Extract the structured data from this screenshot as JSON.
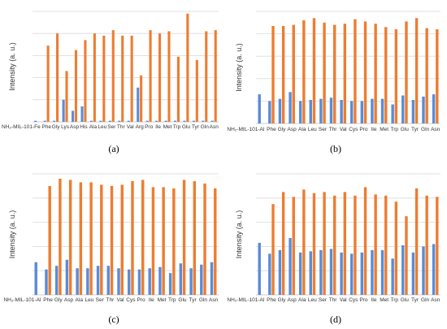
{
  "colors": {
    "series_a": "#5B8BD6",
    "series_b": "#ED7D31",
    "gridline": "#D9D9D9"
  },
  "chart_data": [
    {
      "type": "bar",
      "panel_label": "(a)",
      "ylabel": "Intensity (a. u.)",
      "grid": true,
      "categories": [
        "NH₂-MIL-101-Fe",
        "Phe",
        "Gly",
        "Lys",
        "Asp",
        "His",
        "Ala",
        "Leu",
        "Ser",
        "Thr",
        "Val",
        "Arg",
        "Pro",
        "Ile",
        "Met",
        "Trp",
        "Glu",
        "Tyr",
        "Gln",
        "Asn"
      ],
      "ylim": [
        0,
        100
      ],
      "series": [
        {
          "values": [
            1,
            1,
            1,
            20,
            10,
            14,
            1,
            1,
            1,
            1,
            1,
            31,
            1,
            1,
            1,
            1,
            1,
            1,
            1,
            1
          ]
        },
        {
          "values": [
            0,
            69,
            80,
            46,
            65,
            74,
            80,
            78,
            83,
            78,
            78,
            42,
            83,
            80,
            82,
            59,
            98,
            56,
            82,
            83
          ]
        }
      ]
    },
    {
      "type": "bar",
      "panel_label": "(b)",
      "ylabel": "Intensity (a. u.)",
      "grid": true,
      "categories": [
        "NH₂-MIL-101-Al",
        "Phe",
        "Gly",
        "Asp",
        "Ala",
        "Leu",
        "Ser",
        "Thr",
        "Val",
        "Cys",
        "Pro",
        "Ile",
        "Met",
        "Trp",
        "Glu",
        "Tyr",
        "Gln",
        "Asn"
      ],
      "ylim": [
        0,
        100
      ],
      "series": [
        {
          "values": [
            26,
            20,
            22,
            28,
            20,
            21,
            22,
            23,
            21,
            20,
            20,
            22,
            22,
            17,
            25,
            21,
            24,
            26
          ]
        },
        {
          "values": [
            0,
            87,
            87,
            88,
            92,
            94,
            90,
            88,
            89,
            93,
            91,
            89,
            86,
            84,
            91,
            94,
            85,
            84
          ]
        }
      ]
    },
    {
      "type": "bar",
      "panel_label": "(c)",
      "ylabel": "Intensity (a. u.)",
      "grid": true,
      "categories": [
        "NH₂-MIL-101-Al",
        "Phe",
        "Gly",
        "Asp",
        "Ala",
        "Leu",
        "Ser",
        "Thr",
        "Val",
        "Cys",
        "Pro",
        "Ile",
        "Met",
        "Trp",
        "Glu",
        "Tyr",
        "Gln",
        "Asn"
      ],
      "ylim": [
        0,
        100
      ],
      "series": [
        {
          "values": [
            27,
            21,
            24,
            29,
            22,
            22,
            24,
            24,
            22,
            21,
            21,
            22,
            23,
            18,
            26,
            22,
            25,
            27
          ]
        },
        {
          "values": [
            0,
            90,
            96,
            95,
            93,
            93,
            91,
            90,
            91,
            94,
            95,
            89,
            89,
            88,
            95,
            94,
            92,
            88
          ]
        }
      ]
    },
    {
      "type": "bar",
      "panel_label": "(d)",
      "ylabel": "Intensity (a. u.)",
      "grid": true,
      "categories": [
        "NH₂-MIL-101-Al",
        "Phe",
        "Gly",
        "Asp",
        "Ala",
        "Leu",
        "Ser",
        "Thr",
        "Val",
        "Cys",
        "Pro",
        "Ile",
        "Met",
        "Trp",
        "Glu",
        "Tyr",
        "Gln",
        "Asn"
      ],
      "ylim": [
        0,
        100
      ],
      "series": [
        {
          "values": [
            43,
            34,
            37,
            47,
            35,
            36,
            37,
            38,
            35,
            34,
            35,
            37,
            37,
            30,
            41,
            35,
            40,
            42
          ]
        },
        {
          "values": [
            0,
            75,
            85,
            81,
            87,
            84,
            85,
            82,
            85,
            82,
            89,
            83,
            82,
            77,
            65,
            88,
            82,
            81
          ]
        }
      ]
    }
  ]
}
